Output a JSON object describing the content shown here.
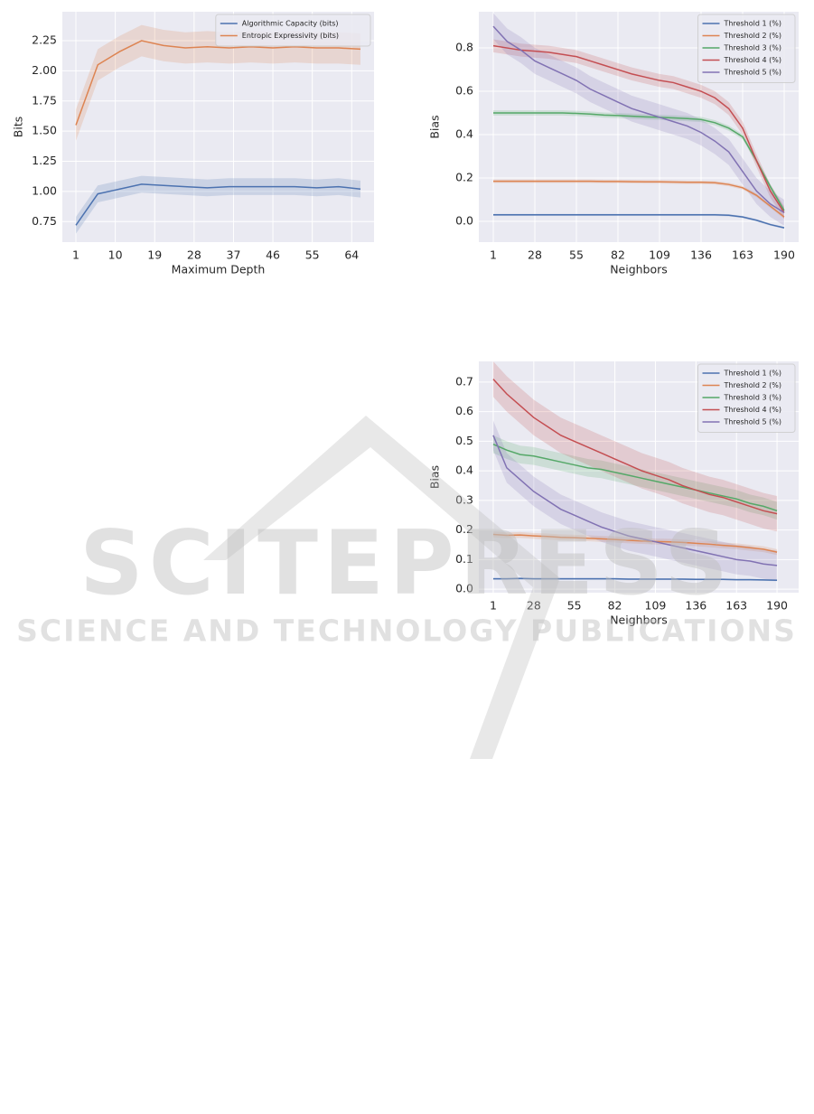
{
  "chart_data": [
    {
      "type": "line",
      "xlabel": "Maximum Depth",
      "ylabel": "Bits",
      "x": [
        1,
        6,
        11,
        16,
        21,
        26,
        31,
        36,
        41,
        46,
        51,
        56,
        61,
        66
      ],
      "xlim": [
        -2.1,
        69.1
      ],
      "xticks": [
        1,
        10,
        19,
        28,
        37,
        46,
        55,
        64
      ],
      "ylim": [
        0.58,
        2.49
      ],
      "yticks": [
        0.75,
        {
          "value": 1,
          "label": "1.00"
        },
        1.25,
        {
          "value": 1.5,
          "label": "1.50"
        },
        1.75,
        {
          "value": 2,
          "label": "2.00"
        },
        2.25
      ],
      "grid": true,
      "legend": "upper right",
      "series": [
        {
          "name": "Algorithmic Capacity (bits)",
          "color": "#4c72b0",
          "ci": 0.07,
          "values": [
            0.72,
            0.98,
            1.02,
            1.06,
            1.05,
            1.04,
            1.03,
            1.04,
            1.04,
            1.04,
            1.04,
            1.03,
            1.04,
            1.02
          ]
        },
        {
          "name": "Entropic Expressivity (bits)",
          "color": "#dd8452",
          "ci": 0.13,
          "values": [
            1.55,
            2.05,
            2.16,
            2.25,
            2.21,
            2.19,
            2.2,
            2.19,
            2.2,
            2.19,
            2.2,
            2.19,
            2.19,
            2.18
          ]
        }
      ]
    },
    {
      "type": "line",
      "xlabel": "Neighbors",
      "ylabel": "Bias",
      "x": [
        1,
        10,
        19,
        28,
        37,
        46,
        55,
        64,
        73,
        82,
        91,
        100,
        109,
        118,
        127,
        136,
        145,
        154,
        163,
        172,
        181,
        190
      ],
      "xlim": [
        -8.4,
        199.4
      ],
      "xticks": [
        1,
        28,
        55,
        82,
        109,
        136,
        163,
        190
      ],
      "ylim": [
        -0.096,
        0.967
      ],
      "yticks": [
        {
          "value": 0,
          "label": "0.0"
        },
        0.2,
        0.4,
        0.6,
        0.8
      ],
      "grid": true,
      "legend": "upper right",
      "series": [
        {
          "name": "Threshold 1 (%)",
          "color": "#4c72b0",
          "ci": 0.005,
          "values": [
            0.03,
            0.03,
            0.03,
            0.03,
            0.03,
            0.03,
            0.03,
            0.03,
            0.03,
            0.03,
            0.03,
            0.03,
            0.03,
            0.03,
            0.03,
            0.03,
            0.03,
            0.028,
            0.02,
            0.005,
            -0.015,
            -0.03
          ]
        },
        {
          "name": "Threshold 2 (%)",
          "color": "#dd8452",
          "ci": 0.008,
          "values": [
            0.185,
            0.185,
            0.185,
            0.185,
            0.185,
            0.185,
            0.185,
            0.185,
            0.184,
            0.184,
            0.183,
            0.182,
            0.182,
            0.181,
            0.18,
            0.18,
            0.178,
            0.17,
            0.155,
            0.12,
            0.07,
            0.02
          ]
        },
        {
          "name": "Threshold 3 (%)",
          "color": "#55a868",
          "ci": 0.012,
          "values": [
            0.5,
            0.5,
            0.5,
            0.5,
            0.5,
            0.5,
            0.498,
            0.495,
            0.49,
            0.488,
            0.485,
            0.482,
            0.48,
            0.477,
            0.474,
            0.47,
            0.455,
            0.43,
            0.39,
            0.28,
            0.16,
            0.05
          ]
        },
        {
          "name": "Threshold 4 (%)",
          "color": "#c44e52",
          "ci": 0.03,
          "values": [
            0.81,
            0.8,
            0.79,
            0.785,
            0.78,
            0.77,
            0.76,
            0.74,
            0.72,
            0.7,
            0.68,
            0.665,
            0.65,
            0.64,
            0.62,
            0.6,
            0.57,
            0.52,
            0.43,
            0.28,
            0.14,
            0.04
          ]
        },
        {
          "name": "Threshold 5 (%)",
          "color": "#8172b3",
          "ci": 0.06,
          "values": [
            0.9,
            0.83,
            0.79,
            0.74,
            0.71,
            0.68,
            0.65,
            0.61,
            0.58,
            0.55,
            0.52,
            0.5,
            0.48,
            0.46,
            0.44,
            0.41,
            0.37,
            0.32,
            0.23,
            0.14,
            0.08,
            0.04
          ]
        }
      ]
    },
    {
      "type": "line",
      "xlabel": "Neighbors",
      "ylabel": "Bias",
      "x": [
        1,
        10,
        19,
        28,
        37,
        46,
        55,
        64,
        73,
        82,
        91,
        100,
        109,
        118,
        127,
        136,
        145,
        154,
        163,
        172,
        181,
        190
      ],
      "xlim": [
        -8.6,
        204.4
      ],
      "xticks": [
        1,
        28,
        55,
        82,
        109,
        136,
        163,
        190
      ],
      "ylim": [
        -0.012,
        0.77
      ],
      "yticks": [
        {
          "value": 0,
          "label": "0.0"
        },
        0.1,
        0.2,
        0.3,
        0.4,
        0.5,
        0.6,
        0.7
      ],
      "grid": true,
      "legend": "upper right",
      "series": [
        {
          "name": "Threshold 1 (%)",
          "color": "#4c72b0",
          "ci": 0.003,
          "values": [
            0.035,
            0.035,
            0.036,
            0.035,
            0.035,
            0.035,
            0.035,
            0.035,
            0.035,
            0.035,
            0.034,
            0.034,
            0.034,
            0.034,
            0.034,
            0.033,
            0.033,
            0.033,
            0.032,
            0.032,
            0.031,
            0.03
          ]
        },
        {
          "name": "Threshold 2 (%)",
          "color": "#dd8452",
          "ci": 0.01,
          "values": [
            0.185,
            0.182,
            0.183,
            0.18,
            0.178,
            0.175,
            0.174,
            0.172,
            0.17,
            0.168,
            0.165,
            0.163,
            0.161,
            0.16,
            0.158,
            0.155,
            0.152,
            0.148,
            0.145,
            0.14,
            0.135,
            0.125
          ]
        },
        {
          "name": "Threshold 3 (%)",
          "color": "#55a868",
          "ci": 0.03,
          "values": [
            0.49,
            0.47,
            0.455,
            0.45,
            0.44,
            0.43,
            0.42,
            0.41,
            0.405,
            0.395,
            0.385,
            0.375,
            0.365,
            0.355,
            0.345,
            0.335,
            0.325,
            0.315,
            0.305,
            0.29,
            0.28,
            0.265
          ]
        },
        {
          "name": "Threshold 4 (%)",
          "color": "#c44e52",
          "ci": 0.06,
          "values": [
            0.71,
            0.66,
            0.62,
            0.58,
            0.55,
            0.52,
            0.5,
            0.48,
            0.46,
            0.44,
            0.42,
            0.4,
            0.385,
            0.37,
            0.35,
            0.335,
            0.32,
            0.31,
            0.295,
            0.28,
            0.265,
            0.255
          ]
        },
        {
          "name": "Threshold 5 (%)",
          "color": "#8172b3",
          "ci": 0.05,
          "values": [
            0.52,
            0.41,
            0.37,
            0.33,
            0.3,
            0.27,
            0.25,
            0.23,
            0.21,
            0.195,
            0.18,
            0.17,
            0.16,
            0.15,
            0.14,
            0.13,
            0.12,
            0.11,
            0.1,
            0.095,
            0.085,
            0.08
          ]
        }
      ]
    }
  ],
  "watermark": {
    "title": "SCITEPRESS",
    "subtitle": "SCIENCE AND TECHNOLOGY PUBLICATIONS"
  }
}
